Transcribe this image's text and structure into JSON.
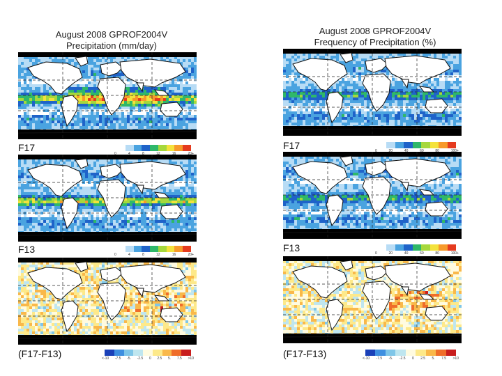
{
  "columns": [
    {
      "title_line1": "August 2008 GPROF2004V",
      "title_line2": "Precipitation (mm/day)",
      "panels": [
        {
          "label": "F17",
          "colorbar": "seq",
          "ticks": [
            "0",
            "4",
            "8",
            "12",
            "16",
            "20+"
          ]
        },
        {
          "label": "F13",
          "colorbar": "seq",
          "ticks": [
            "0",
            "4",
            "8",
            "12",
            "16",
            "20+"
          ]
        },
        {
          "label": "(F17-F13)",
          "colorbar": "div",
          "ticks": [
            "<-10",
            "-7.5",
            "-5.",
            "-2.5",
            "0",
            "2.5",
            "5.",
            "7.5",
            ">10"
          ]
        }
      ]
    },
    {
      "title_line1": "August 2008 GPROF2004V",
      "title_line2": "Frequency of Precipitation (%)",
      "panels": [
        {
          "label": "F17",
          "colorbar": "seq",
          "ticks": [
            "0",
            "20",
            "40",
            "60",
            "80",
            "100+"
          ]
        },
        {
          "label": "F13",
          "colorbar": "seq",
          "ticks": [
            "0",
            "20",
            "40",
            "60",
            "80",
            "100+"
          ]
        },
        {
          "label": "(F17-F13)",
          "colorbar": "div",
          "ticks": [
            "<-10",
            "-7.5",
            "-5.",
            "-2.5",
            "0",
            "2.5",
            "5.",
            "7.5",
            ">10"
          ]
        }
      ]
    }
  ],
  "colors": {
    "seq_scale": [
      "#ffffff",
      "#b8dcf5",
      "#4aa3e0",
      "#1f63c9",
      "#2fb86a",
      "#a6d83c",
      "#f4e23c",
      "#f79a2b",
      "#e53b1f"
    ],
    "div_scale": [
      "#1a40b8",
      "#3e8fe0",
      "#7fc6e8",
      "#bfe6ef",
      "#fffbe0",
      "#fde98a",
      "#f9b84a",
      "#ef6d2a",
      "#c81e1e"
    ],
    "land_outline": "#111111",
    "mask_color": "#000000"
  }
}
